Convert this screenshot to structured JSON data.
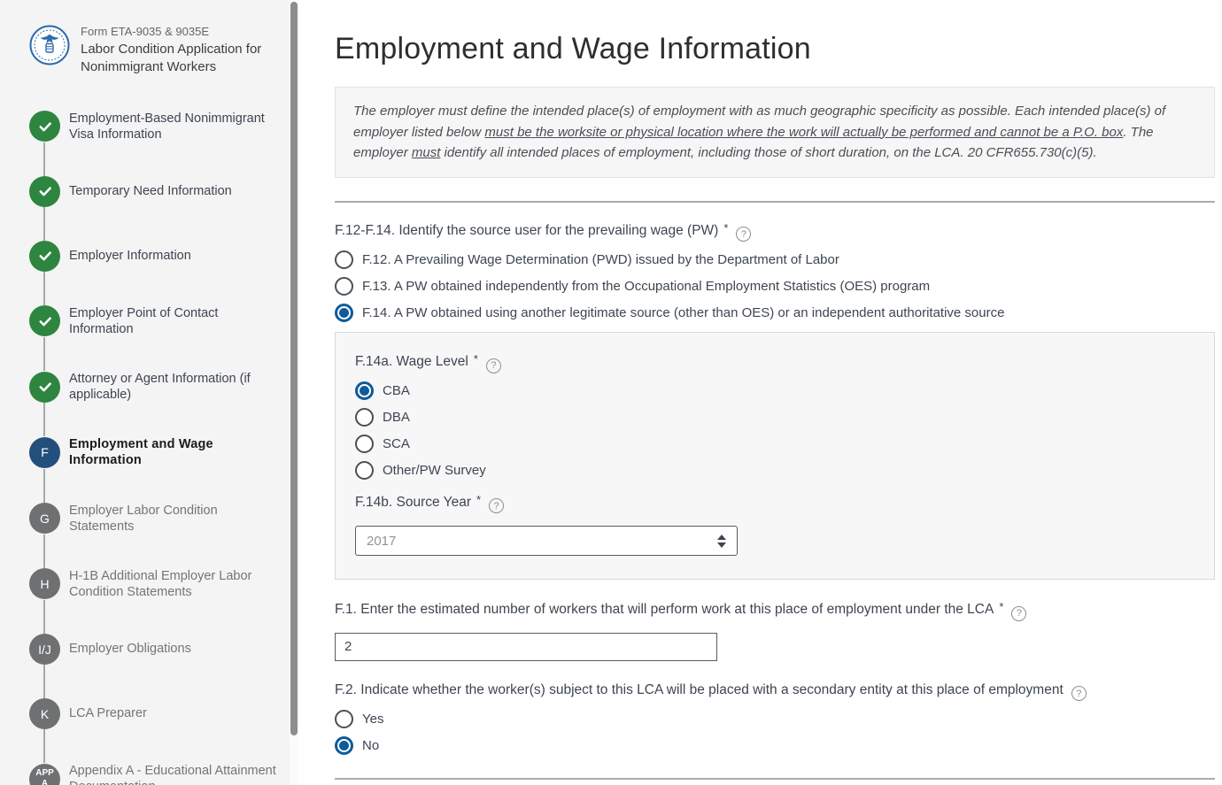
{
  "colors": {
    "accent_blue": "#0f5b99",
    "step_current_blue": "#234f7d",
    "complete_green": "#2e8540",
    "upcoming_gray": "#6e7071",
    "sidebar_bg": "#f4f4f4"
  },
  "brand": {
    "logo": "dol-seal-icon",
    "form_code": "Form ETA-9035 & 9035E",
    "form_title": "Labor Condition Application for Nonimmigrant Workers"
  },
  "sidebar": {
    "steps": [
      {
        "label": "Employment-Based Nonimmigrant Visa Information",
        "status": "complete",
        "badge": ""
      },
      {
        "label": "Temporary Need Information",
        "status": "complete",
        "badge": ""
      },
      {
        "label": "Employer Information",
        "status": "complete",
        "badge": ""
      },
      {
        "label": "Employer Point of Contact Information",
        "status": "complete",
        "badge": ""
      },
      {
        "label": "Attorney or Agent Information (if applicable)",
        "status": "complete",
        "badge": ""
      },
      {
        "label": "Employment and Wage Information",
        "status": "current",
        "badge": "F"
      },
      {
        "label": "Employer Labor Condition Statements",
        "status": "upcoming",
        "badge": "G"
      },
      {
        "label": "H-1B Additional Employer Labor Condition Statements",
        "status": "upcoming",
        "badge": "H"
      },
      {
        "label": "Employer Obligations",
        "status": "upcoming",
        "badge": "I/J"
      },
      {
        "label": "LCA Preparer",
        "status": "upcoming",
        "badge": "K"
      },
      {
        "label": "Appendix A - Educational Attainment Documentation",
        "status": "upcoming",
        "badge": "APP A"
      }
    ]
  },
  "main": {
    "title": "Employment and Wage Information",
    "notice_segments": [
      {
        "text": "The employer must define the intended place(s) of employment with as much geographic specificity as possible. Each intended place(s) of employer listed below ",
        "u": false
      },
      {
        "text": "must be the worksite or physical location where the work will actually be performed and cannot be a P.O. box",
        "u": true
      },
      {
        "text": ". The employer ",
        "u": false
      },
      {
        "text": "must",
        "u": true
      },
      {
        "text": " identify all intended places of employment, including those of short duration, on the LCA. 20 CFR655.730(c)(5).",
        "u": false
      }
    ],
    "q_f12_14": {
      "label": "F.12-F.14. Identify the source user for the prevailing wage (PW)",
      "required": true,
      "options": [
        {
          "label": "F.12. A Prevailing Wage Determination (PWD) issued by the Department of Labor",
          "selected": false
        },
        {
          "label": "F.13. A PW obtained independently from the Occupational Employment Statistics (OES) program",
          "selected": false
        },
        {
          "label": "F.14. A PW obtained using another legitimate source (other than OES) or an independent authoritative source",
          "selected": true
        }
      ]
    },
    "q_f14a": {
      "label": "F.14a. Wage Level",
      "required": true,
      "options": [
        {
          "label": "CBA",
          "selected": true
        },
        {
          "label": "DBA",
          "selected": false
        },
        {
          "label": "SCA",
          "selected": false
        },
        {
          "label": "Other/PW Survey",
          "selected": false
        }
      ]
    },
    "q_f14b": {
      "label": "F.14b. Source Year",
      "required": true,
      "value": "2017"
    },
    "q_f1": {
      "label": "F.1. Enter the estimated number of workers that will perform work at this place of employment under the LCA",
      "required": true,
      "value": "2"
    },
    "q_f2": {
      "label": "F.2. Indicate whether the worker(s) subject to this LCA will be placed with a secondary entity at this place of employment",
      "required": false,
      "options": [
        {
          "label": "Yes",
          "selected": false
        },
        {
          "label": "No",
          "selected": true
        }
      ]
    },
    "help_icon_glyph": "?"
  }
}
